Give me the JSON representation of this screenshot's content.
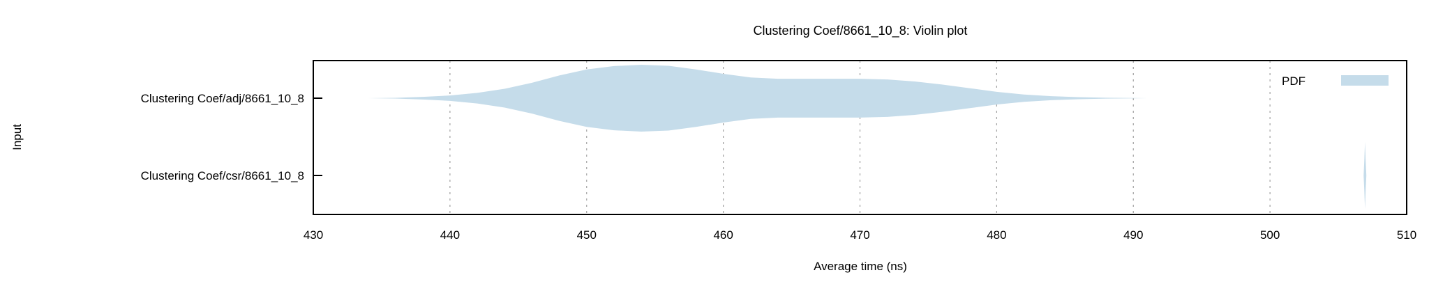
{
  "chart_data": {
    "type": "violin",
    "title": "Clustering Coef/8661_10_8: Violin plot",
    "xlabel": "Average time (ns)",
    "ylabel": "Input",
    "xlim": [
      430,
      510
    ],
    "xticks": [
      430,
      440,
      450,
      460,
      470,
      480,
      490,
      500,
      510
    ],
    "grid": "vertical dashed",
    "legend": {
      "label": "PDF",
      "position": "top-right"
    },
    "fill_color": "#c5dcea",
    "series": [
      {
        "name": "Clustering Coef/adj/8661_10_8",
        "density": [
          [
            434,
            0.0
          ],
          [
            436,
            0.01
          ],
          [
            438,
            0.04
          ],
          [
            440,
            0.08
          ],
          [
            442,
            0.16
          ],
          [
            444,
            0.28
          ],
          [
            446,
            0.46
          ],
          [
            448,
            0.68
          ],
          [
            450,
            0.86
          ],
          [
            452,
            0.96
          ],
          [
            454,
            1.0
          ],
          [
            456,
            0.97
          ],
          [
            458,
            0.86
          ],
          [
            460,
            0.73
          ],
          [
            462,
            0.62
          ],
          [
            464,
            0.58
          ],
          [
            466,
            0.58
          ],
          [
            468,
            0.58
          ],
          [
            470,
            0.58
          ],
          [
            472,
            0.56
          ],
          [
            474,
            0.5
          ],
          [
            476,
            0.41
          ],
          [
            478,
            0.3
          ],
          [
            480,
            0.19
          ],
          [
            482,
            0.11
          ],
          [
            484,
            0.06
          ],
          [
            486,
            0.03
          ],
          [
            488,
            0.012
          ],
          [
            490,
            0.004
          ],
          [
            491,
            0.0
          ]
        ]
      },
      {
        "name": "Clustering Coef/csr/8661_10_8",
        "density": [
          [
            506.85,
            0.0
          ],
          [
            506.9,
            0.45
          ],
          [
            506.95,
            1.0
          ],
          [
            507.0,
            0.45
          ],
          [
            507.05,
            0.0
          ]
        ]
      }
    ]
  }
}
